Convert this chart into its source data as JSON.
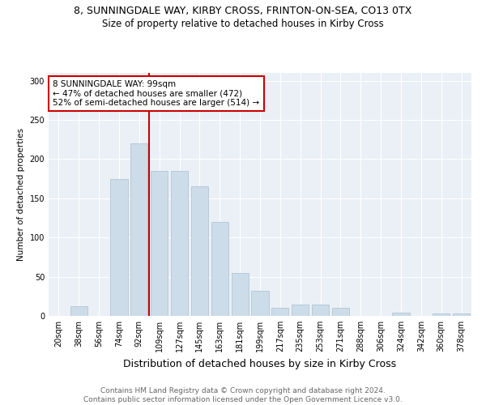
{
  "title": "8, SUNNINGDALE WAY, KIRBY CROSS, FRINTON-ON-SEA, CO13 0TX",
  "subtitle": "Size of property relative to detached houses in Kirby Cross",
  "xlabel": "Distribution of detached houses by size in Kirby Cross",
  "ylabel": "Number of detached properties",
  "categories": [
    "20sqm",
    "38sqm",
    "56sqm",
    "74sqm",
    "92sqm",
    "109sqm",
    "127sqm",
    "145sqm",
    "163sqm",
    "181sqm",
    "199sqm",
    "217sqm",
    "235sqm",
    "253sqm",
    "271sqm",
    "288sqm",
    "306sqm",
    "324sqm",
    "342sqm",
    "360sqm",
    "378sqm"
  ],
  "values": [
    0,
    12,
    0,
    175,
    220,
    185,
    185,
    165,
    120,
    55,
    32,
    10,
    14,
    14,
    10,
    0,
    0,
    4,
    0,
    3,
    3
  ],
  "bar_color": "#ccdce8",
  "bar_edge_color": "#aabfcf",
  "vline_color": "#cc0000",
  "annotation_text": "8 SUNNINGDALE WAY: 99sqm\n← 47% of detached houses are smaller (472)\n52% of semi-detached houses are larger (514) →",
  "annotation_box_color": "#ffffff",
  "annotation_box_edge": "#cc0000",
  "ylim": [
    0,
    310
  ],
  "yticks": [
    0,
    50,
    100,
    150,
    200,
    250,
    300
  ],
  "footer": "Contains HM Land Registry data © Crown copyright and database right 2024.\nContains public sector information licensed under the Open Government Licence v3.0.",
  "title_fontsize": 9,
  "subtitle_fontsize": 8.5,
  "xlabel_fontsize": 9,
  "ylabel_fontsize": 7.5,
  "footer_fontsize": 6.5,
  "tick_fontsize": 7,
  "annot_fontsize": 7.5
}
